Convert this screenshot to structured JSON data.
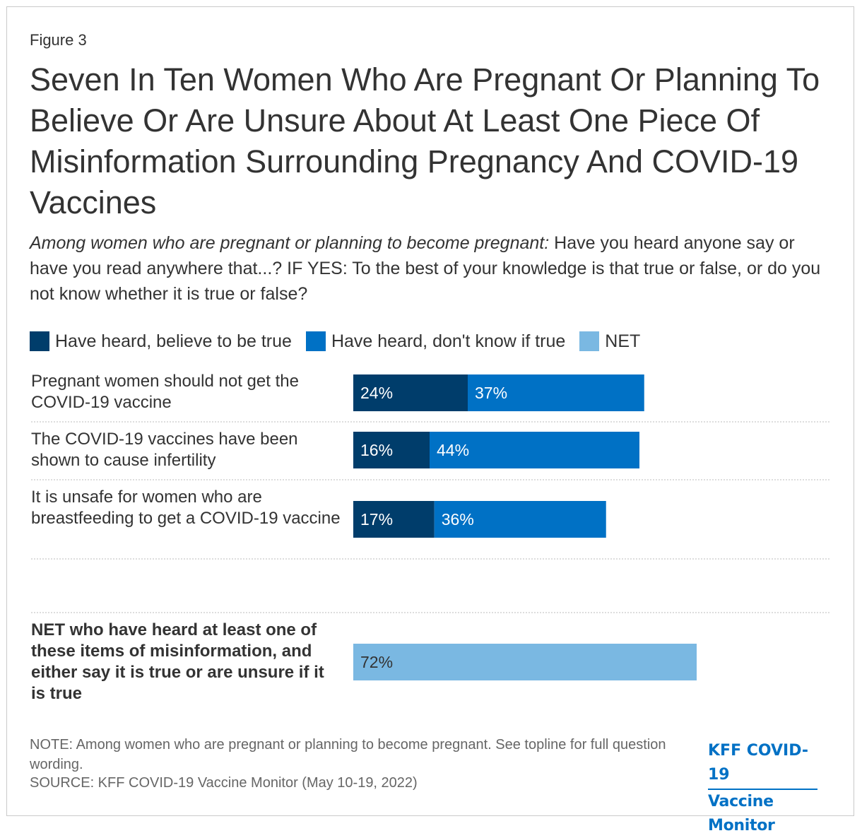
{
  "figure_label": "Figure 3",
  "title": "Seven In Ten Women Who Are Pregnant Or Planning To Believe Or Are Unsure About At Least One Piece Of Misinformation Surrounding Pregnancy And COVID-19 Vaccines",
  "subtitle_italic": "Among women who are pregnant or planning to become pregnant:",
  "subtitle_rest": " Have you heard anyone say or have you read anywhere that...? IF YES: To the best of your knowledge is that true or false, or do you not know whether it is true or false?",
  "colors": {
    "believe_true": "#003d6b",
    "dont_know": "#0071c5",
    "net": "#7ab8e2",
    "gridline": "#bbbbbb"
  },
  "legend": [
    {
      "label": "Have heard, believe to be true",
      "color": "#003d6b"
    },
    {
      "label": "Have heard, don't know if true",
      "color": "#0071c5"
    },
    {
      "label": "NET",
      "color": "#7ab8e2"
    }
  ],
  "chart_data": {
    "type": "bar",
    "orientation": "horizontal",
    "stacked": true,
    "categories": [
      "Pregnant women should not get the COVID-19 vaccine",
      "The COVID-19 vaccines have been shown to cause infertility",
      "It is unsafe for women who are breastfeeding to get a COVID-19 vaccine",
      "NET who have heard at least one of these items of misinformation, and either say it is true or are unsure if it is true"
    ],
    "series": [
      {
        "name": "Have heard, believe to be true",
        "values": [
          24,
          16,
          17,
          null
        ]
      },
      {
        "name": "Have heard, don't know if true",
        "values": [
          37,
          44,
          36,
          null
        ]
      },
      {
        "name": "NET",
        "values": [
          null,
          null,
          null,
          72
        ]
      }
    ],
    "data_labels": [
      [
        "24%",
        "37%"
      ],
      [
        "16%",
        "44%"
      ],
      [
        "17%",
        "36%"
      ],
      [
        "72%"
      ]
    ],
    "xlim": [
      0,
      100
    ],
    "legend_position": "top",
    "grid": false
  },
  "note": "NOTE: Among women who are pregnant or planning to become pregnant. See topline for full question wording.",
  "source": "SOURCE: KFF COVID-19 Vaccine Monitor (May 10-19, 2022)",
  "logo": {
    "line1": "KFF COVID-19",
    "line2": "Vaccine Monitor"
  }
}
